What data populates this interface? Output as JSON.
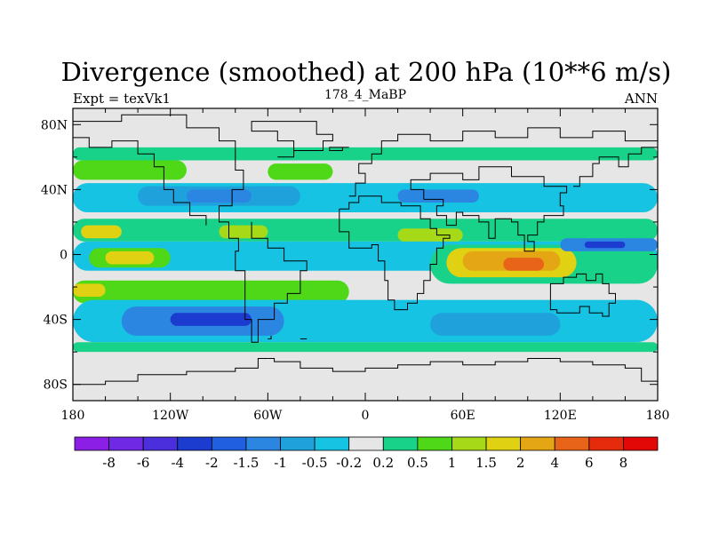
{
  "chart_data": {
    "type": "heatmap",
    "title": "Divergence (smoothed) at 200 hPa (10**6 m/s)",
    "left_label": "Expt = texVk1",
    "center_label": "178_4_MaBP",
    "right_label": "ANN",
    "x_range": [
      -180,
      180
    ],
    "y_range": [
      -90,
      90
    ],
    "x_ticks": [
      {
        "value": -180,
        "label": "180"
      },
      {
        "value": -120,
        "label": "120W"
      },
      {
        "value": -60,
        "label": "60W"
      },
      {
        "value": 0,
        "label": "0"
      },
      {
        "value": 60,
        "label": "60E"
      },
      {
        "value": 120,
        "label": "120E"
      },
      {
        "value": 180,
        "label": "180"
      }
    ],
    "y_ticks": [
      {
        "value": 80,
        "label": "80N"
      },
      {
        "value": 40,
        "label": "40N"
      },
      {
        "value": 0,
        "label": "0"
      },
      {
        "value": -40,
        "label": "40S"
      },
      {
        "value": -80,
        "label": "80S"
      }
    ],
    "colorbar_labels": [
      "-8",
      "-6",
      "-4",
      "-2",
      "-1.5",
      "-1",
      "-0.5",
      "-0.2",
      "0.2",
      "0.5",
      "1",
      "1.5",
      "2",
      "4",
      "6",
      "8"
    ],
    "colorbar_colors": [
      "#8c1fe6",
      "#6f28e3",
      "#4b2fdc",
      "#1c3ccf",
      "#1f5fe0",
      "#2b86e2",
      "#1fa2dc",
      "#17c3e2",
      "#e6e6e6",
      "#19d28a",
      "#4ed818",
      "#a6da18",
      "#e0d212",
      "#e4a614",
      "#e86418",
      "#e62a0c",
      "#e20808"
    ],
    "bands": [
      {
        "lat": [
          58,
          66
        ],
        "lon": [
          -180,
          180
        ],
        "color": "#19d28a"
      },
      {
        "lat": [
          46,
          58
        ],
        "lon": [
          -180,
          -110
        ],
        "color": "#4ed818"
      },
      {
        "lat": [
          46,
          56
        ],
        "lon": [
          -60,
          -20
        ],
        "color": "#4ed818"
      },
      {
        "lat": [
          26,
          44
        ],
        "lon": [
          -180,
          180
        ],
        "color": "#17c3e2"
      },
      {
        "lat": [
          30,
          42
        ],
        "lon": [
          -140,
          -40
        ],
        "color": "#1fa2dc"
      },
      {
        "lat": [
          32,
          40
        ],
        "lon": [
          -110,
          -70
        ],
        "color": "#2b86e2"
      },
      {
        "lat": [
          32,
          40
        ],
        "lon": [
          20,
          70
        ],
        "color": "#2b86e2"
      },
      {
        "lat": [
          8,
          22
        ],
        "lon": [
          -180,
          180
        ],
        "color": "#19d28a"
      },
      {
        "lat": [
          10,
          18
        ],
        "lon": [
          -175,
          -150
        ],
        "color": "#e0d212"
      },
      {
        "lat": [
          10,
          18
        ],
        "lon": [
          -90,
          -60
        ],
        "color": "#a6da18"
      },
      {
        "lat": [
          8,
          16
        ],
        "lon": [
          20,
          60
        ],
        "color": "#a6da18"
      },
      {
        "lat": [
          -10,
          8
        ],
        "lon": [
          -180,
          180
        ],
        "color": "#17c3e2"
      },
      {
        "lat": [
          -8,
          4
        ],
        "lon": [
          -170,
          -120
        ],
        "color": "#4ed818"
      },
      {
        "lat": [
          -6,
          2
        ],
        "lon": [
          -160,
          -130
        ],
        "color": "#e0d212"
      },
      {
        "lat": [
          -18,
          6
        ],
        "lon": [
          40,
          180
        ],
        "color": "#19d28a"
      },
      {
        "lat": [
          -14,
          4
        ],
        "lon": [
          50,
          130
        ],
        "color": "#e0d212"
      },
      {
        "lat": [
          -10,
          2
        ],
        "lon": [
          60,
          120
        ],
        "color": "#e4a614"
      },
      {
        "lat": [
          -10,
          -2
        ],
        "lon": [
          85,
          110
        ],
        "color": "#e86418"
      },
      {
        "lat": [
          2,
          10
        ],
        "lon": [
          120,
          180
        ],
        "color": "#2b86e2"
      },
      {
        "lat": [
          4,
          8
        ],
        "lon": [
          135,
          160
        ],
        "color": "#1c3ccf"
      },
      {
        "lat": [
          -30,
          -16
        ],
        "lon": [
          -180,
          -10
        ],
        "color": "#4ed818"
      },
      {
        "lat": [
          -26,
          -18
        ],
        "lon": [
          -180,
          -160
        ],
        "color": "#e0d212"
      },
      {
        "lat": [
          -54,
          -28
        ],
        "lon": [
          -180,
          180
        ],
        "color": "#17c3e2"
      },
      {
        "lat": [
          -50,
          -32
        ],
        "lon": [
          -150,
          -50
        ],
        "color": "#2b86e2"
      },
      {
        "lat": [
          -44,
          -36
        ],
        "lon": [
          -120,
          -70
        ],
        "color": "#1c3ccf"
      },
      {
        "lat": [
          -50,
          -36
        ],
        "lon": [
          40,
          120
        ],
        "color": "#1fa2dc"
      },
      {
        "lat": [
          -60,
          -54
        ],
        "lon": [
          -180,
          180
        ],
        "color": "#19d28a"
      }
    ]
  }
}
